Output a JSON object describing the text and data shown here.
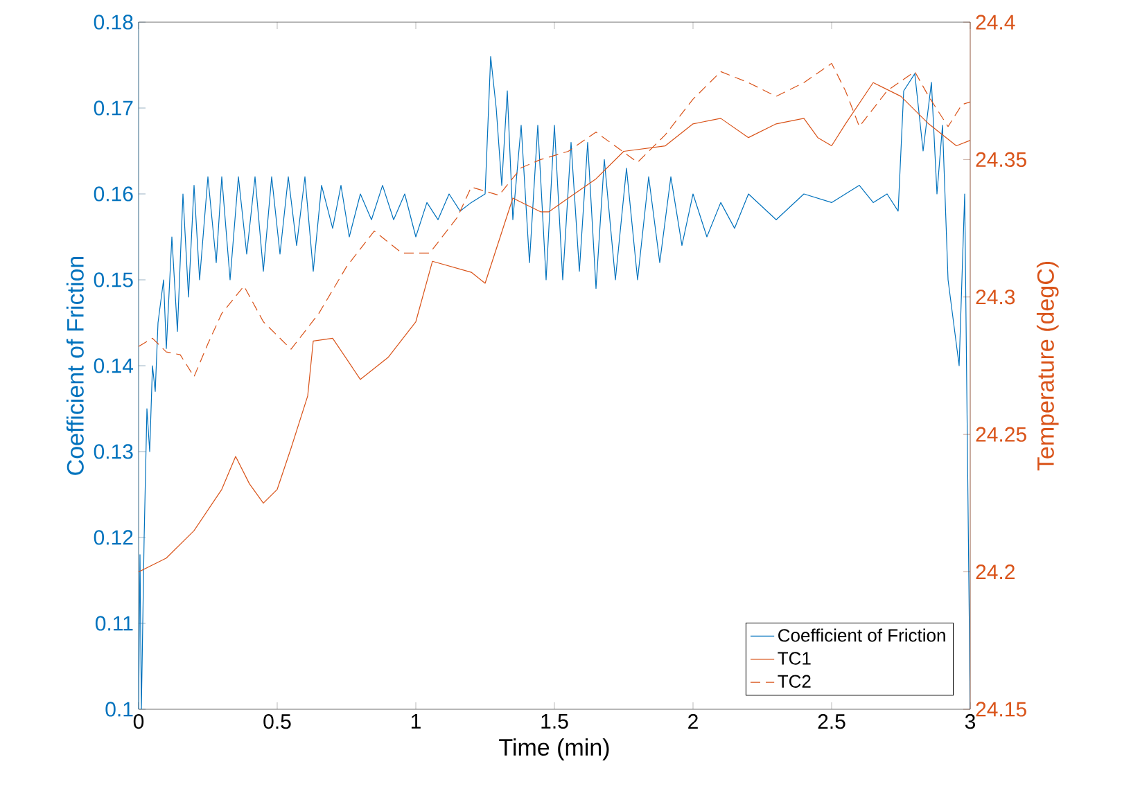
{
  "chart_data": {
    "type": "line",
    "xlabel": "Time (min)",
    "ylabel": "Coefficient of Friction",
    "y2label": "Temperature (degC)",
    "xlim": [
      0,
      3
    ],
    "xticks": [
      0,
      0.5,
      1,
      1.5,
      2,
      2.5,
      3
    ],
    "ylim": [
      0.1,
      0.18
    ],
    "yticks": [
      0.1,
      0.11,
      0.12,
      0.13,
      0.14,
      0.15,
      0.16,
      0.17,
      0.18
    ],
    "y2lim": [
      24.15,
      24.4
    ],
    "y2ticks": [
      24.15,
      24.2,
      24.25,
      24.3,
      24.35,
      24.4
    ],
    "legend": "bottom right",
    "grid": false,
    "series": [
      {
        "name": "Coefficient of Friction",
        "color": "#0072bd",
        "line_style": "solid",
        "x": [
          0,
          0.005,
          0.01,
          0.02,
          0.03,
          0.04,
          0.05,
          0.06,
          0.07,
          0.09,
          0.1,
          0.12,
          0.14,
          0.16,
          0.18,
          0.2,
          0.22,
          0.25,
          0.28,
          0.3,
          0.33,
          0.36,
          0.39,
          0.42,
          0.45,
          0.48,
          0.51,
          0.54,
          0.57,
          0.6,
          0.63,
          0.66,
          0.7,
          0.73,
          0.76,
          0.8,
          0.84,
          0.88,
          0.92,
          0.96,
          1.0,
          1.04,
          1.08,
          1.12,
          1.16,
          1.2,
          1.25,
          1.27,
          1.29,
          1.31,
          1.33,
          1.35,
          1.38,
          1.41,
          1.44,
          1.47,
          1.5,
          1.53,
          1.56,
          1.59,
          1.62,
          1.65,
          1.68,
          1.72,
          1.76,
          1.8,
          1.84,
          1.88,
          1.92,
          1.96,
          2.0,
          2.05,
          2.1,
          2.15,
          2.2,
          2.3,
          2.4,
          2.5,
          2.6,
          2.65,
          2.7,
          2.74,
          2.76,
          2.8,
          2.83,
          2.86,
          2.88,
          2.9,
          2.92,
          2.94,
          2.96,
          2.98,
          3.0
        ],
        "values": [
          0.1,
          0.118,
          0.1,
          0.12,
          0.135,
          0.13,
          0.14,
          0.137,
          0.145,
          0.15,
          0.142,
          0.155,
          0.144,
          0.16,
          0.148,
          0.161,
          0.15,
          0.162,
          0.152,
          0.162,
          0.15,
          0.162,
          0.153,
          0.162,
          0.151,
          0.162,
          0.153,
          0.162,
          0.154,
          0.162,
          0.151,
          0.161,
          0.156,
          0.161,
          0.155,
          0.16,
          0.157,
          0.161,
          0.157,
          0.16,
          0.155,
          0.159,
          0.157,
          0.16,
          0.158,
          0.159,
          0.16,
          0.176,
          0.17,
          0.161,
          0.172,
          0.157,
          0.168,
          0.152,
          0.168,
          0.15,
          0.168,
          0.15,
          0.166,
          0.151,
          0.166,
          0.149,
          0.164,
          0.15,
          0.163,
          0.15,
          0.162,
          0.152,
          0.162,
          0.154,
          0.16,
          0.155,
          0.159,
          0.156,
          0.16,
          0.157,
          0.16,
          0.159,
          0.161,
          0.159,
          0.16,
          0.158,
          0.172,
          0.174,
          0.165,
          0.173,
          0.16,
          0.168,
          0.15,
          0.145,
          0.14,
          0.16,
          0.1
        ]
      },
      {
        "name": "TC1",
        "color": "#d95319",
        "axis": "y2",
        "line_style": "solid",
        "x": [
          0,
          0.1,
          0.2,
          0.3,
          0.35,
          0.4,
          0.45,
          0.5,
          0.55,
          0.61,
          0.63,
          0.7,
          0.8,
          0.9,
          1.0,
          1.06,
          1.2,
          1.25,
          1.35,
          1.45,
          1.48,
          1.55,
          1.65,
          1.75,
          1.9,
          2.0,
          2.1,
          2.2,
          2.3,
          2.4,
          2.45,
          2.5,
          2.55,
          2.65,
          2.75,
          2.85,
          2.95,
          3.0
        ],
        "values": [
          24.2,
          24.205,
          24.215,
          24.23,
          24.242,
          24.232,
          24.225,
          24.23,
          24.245,
          24.264,
          24.284,
          24.285,
          24.27,
          24.278,
          24.291,
          24.313,
          24.309,
          24.305,
          24.336,
          24.331,
          24.331,
          24.336,
          24.343,
          24.353,
          24.355,
          24.363,
          24.365,
          24.358,
          24.363,
          24.365,
          24.358,
          24.355,
          24.363,
          24.378,
          24.373,
          24.363,
          24.355,
          24.357
        ]
      },
      {
        "name": "TC2",
        "color": "#d95319",
        "axis": "y2",
        "line_style": "dashed",
        "x": [
          0,
          0.05,
          0.1,
          0.15,
          0.2,
          0.25,
          0.3,
          0.38,
          0.45,
          0.55,
          0.65,
          0.75,
          0.85,
          0.95,
          1.05,
          1.15,
          1.2,
          1.3,
          1.38,
          1.45,
          1.55,
          1.65,
          1.8,
          1.9,
          2.0,
          2.1,
          2.2,
          2.3,
          2.4,
          2.5,
          2.55,
          2.6,
          2.7,
          2.8,
          2.85,
          2.92,
          2.97,
          3.0
        ],
        "values": [
          24.282,
          24.285,
          24.28,
          24.279,
          24.271,
          24.283,
          24.294,
          24.304,
          24.291,
          24.281,
          24.294,
          24.311,
          24.324,
          24.316,
          24.316,
          24.329,
          24.34,
          24.337,
          24.347,
          24.35,
          24.353,
          24.36,
          24.349,
          24.359,
          24.372,
          24.382,
          24.378,
          24.373,
          24.378,
          24.385,
          24.375,
          24.362,
          24.375,
          24.382,
          24.373,
          24.362,
          24.37,
          24.371
        ]
      }
    ]
  }
}
